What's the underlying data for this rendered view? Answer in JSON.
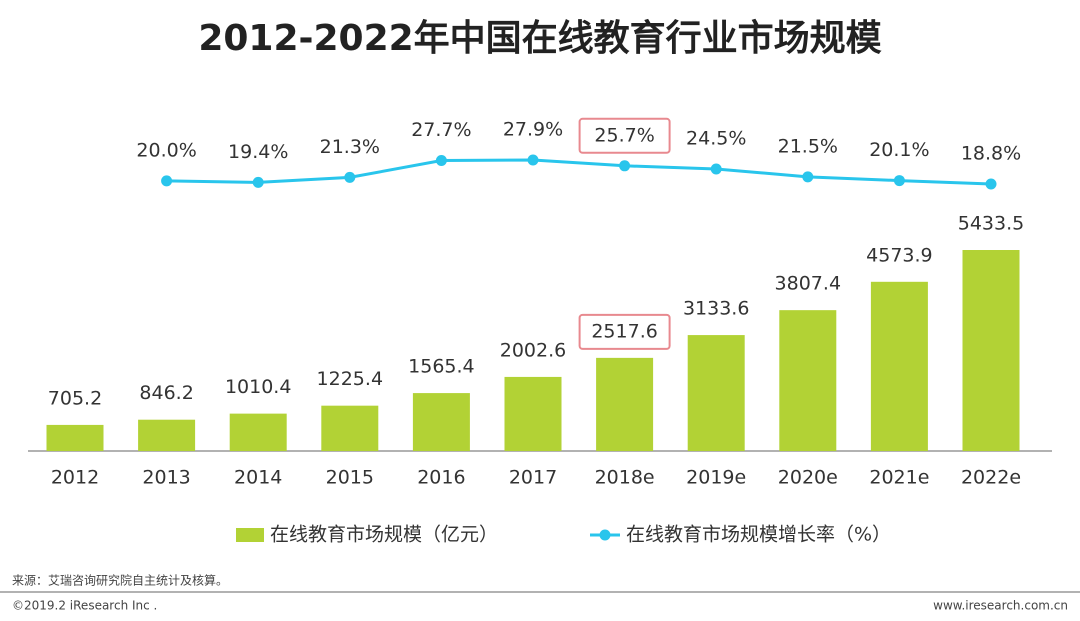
{
  "chart_data": {
    "type": "bar",
    "title": "2012-2022年中国在线教育行业市场规模",
    "categories": [
      "2012",
      "2013",
      "2014",
      "2015",
      "2016",
      "2017",
      "2018e",
      "2019e",
      "2020e",
      "2021e",
      "2022e"
    ],
    "series": [
      {
        "name": "在线教育市场规模（亿元）",
        "type": "bar",
        "color": "#b2d235",
        "values": [
          705.2,
          846.2,
          1010.4,
          1225.4,
          1565.4,
          2002.6,
          2517.6,
          3133.6,
          3807.4,
          4573.9,
          5433.5
        ]
      },
      {
        "name": "在线教育市场规模增长率（%）",
        "type": "line",
        "axis": "y2",
        "color": "#29c5ec",
        "values": [
          null,
          20.0,
          19.4,
          21.3,
          27.7,
          27.9,
          25.7,
          24.5,
          21.5,
          20.1,
          18.8
        ],
        "value_labels": [
          null,
          "20.0%",
          "19.4%",
          "21.3%",
          "27.7%",
          "27.9%",
          "25.7%",
          "24.5%",
          "21.5%",
          "20.1%",
          "18.8%"
        ]
      }
    ],
    "highlight": "2018e",
    "source": "来源：艾瑞咨询研究院自主统计及核算。",
    "copyright": "©2019.2 iResearch Inc .",
    "website": "www.iresearch.com.cn"
  }
}
